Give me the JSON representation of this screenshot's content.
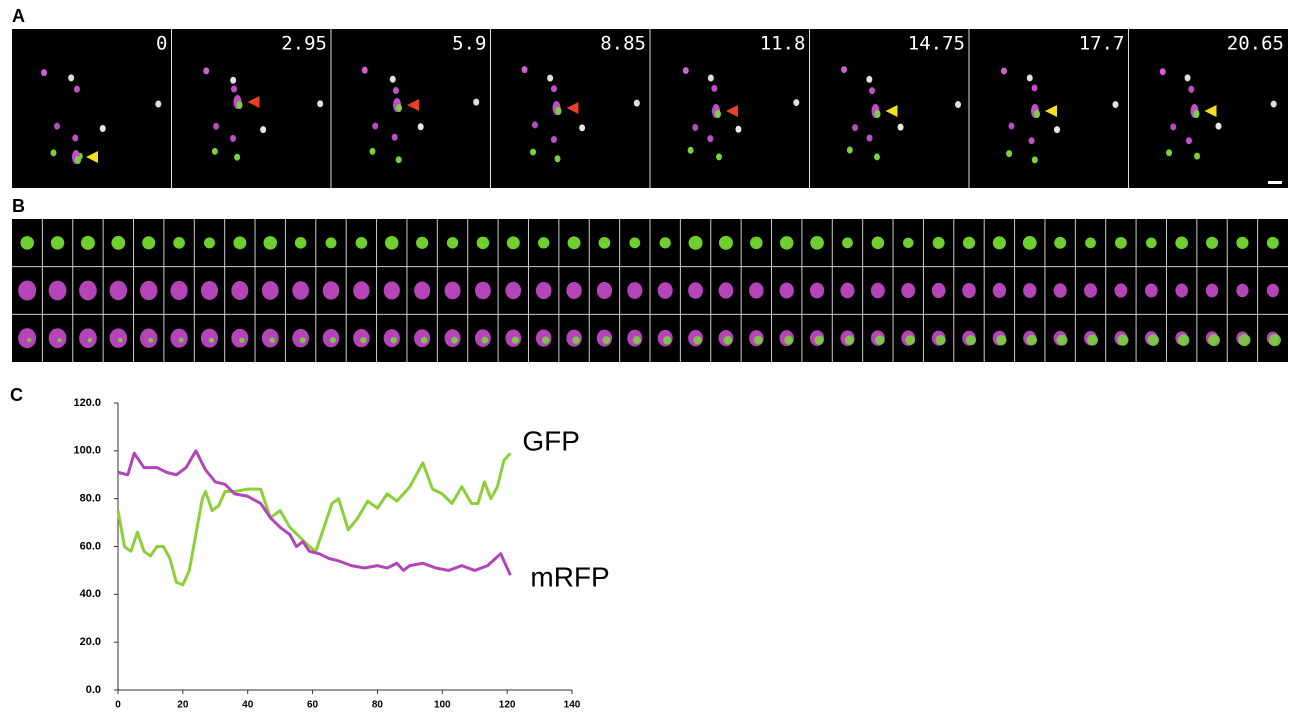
{
  "panel_labels": {
    "a": "A",
    "b": "B",
    "c": "C"
  },
  "panel_a": {
    "time_labels": [
      "0",
      "2.95",
      "5.9",
      "8.85",
      "11.8",
      "14.75",
      "17.7",
      "20.65"
    ]
  },
  "chart_data": {
    "type": "line",
    "xlim": [
      0,
      140
    ],
    "xticks": [
      0,
      20,
      40,
      60,
      80,
      100,
      120,
      140
    ],
    "ylim": [
      0,
      120
    ],
    "yticks": [
      {
        "value": 0,
        "label": "0.0"
      },
      {
        "value": 20,
        "label": "20.0"
      },
      {
        "value": 40,
        "label": "40.0"
      },
      {
        "value": 60,
        "label": "60.0"
      },
      {
        "value": 80,
        "label": "80.0"
      },
      {
        "value": 100,
        "label": "100.0"
      },
      {
        "value": 120,
        "label": "120.0"
      }
    ],
    "series": [
      {
        "name": "GFP",
        "color": "#8ccf3a",
        "x": [
          0,
          2,
          4,
          6,
          8,
          10,
          12,
          14,
          16,
          18,
          20,
          22,
          24,
          26,
          27,
          29,
          31,
          33,
          36,
          40,
          44,
          47,
          50,
          53,
          56,
          59,
          61,
          64,
          66,
          68,
          71,
          74,
          77,
          80,
          83,
          86,
          90,
          94,
          97,
          100,
          103,
          106,
          109,
          111,
          113,
          115,
          117,
          119,
          121
        ],
        "values": [
          75,
          60,
          58,
          66,
          58,
          56,
          60,
          60,
          55,
          45,
          44,
          50,
          65,
          80,
          83,
          75,
          77,
          83,
          83,
          84,
          84,
          72,
          75,
          68,
          64,
          60,
          58,
          70,
          78,
          80,
          67,
          72,
          79,
          76,
          82,
          79,
          85,
          95,
          84,
          82,
          78,
          85,
          78,
          78,
          87,
          80,
          85,
          96,
          99
        ]
      },
      {
        "name": "mRFP",
        "color": "#b246b8",
        "x": [
          0,
          3,
          5,
          8,
          12,
          15,
          18,
          21,
          24,
          27,
          30,
          33,
          36,
          40,
          44,
          47,
          50,
          53,
          55,
          57,
          59,
          62,
          65,
          68,
          72,
          76,
          80,
          83,
          86,
          88,
          90,
          94,
          98,
          102,
          106,
          110,
          114,
          118,
          121
        ],
        "values": [
          91,
          90,
          99,
          93,
          93,
          91,
          90,
          93,
          100,
          92,
          87,
          86,
          82,
          81,
          78,
          72,
          68,
          65,
          60,
          62,
          58,
          57,
          55,
          54,
          52,
          51,
          52,
          51,
          53,
          50,
          52,
          53,
          51,
          50,
          52,
          50,
          52,
          57,
          48
        ]
      }
    ]
  }
}
